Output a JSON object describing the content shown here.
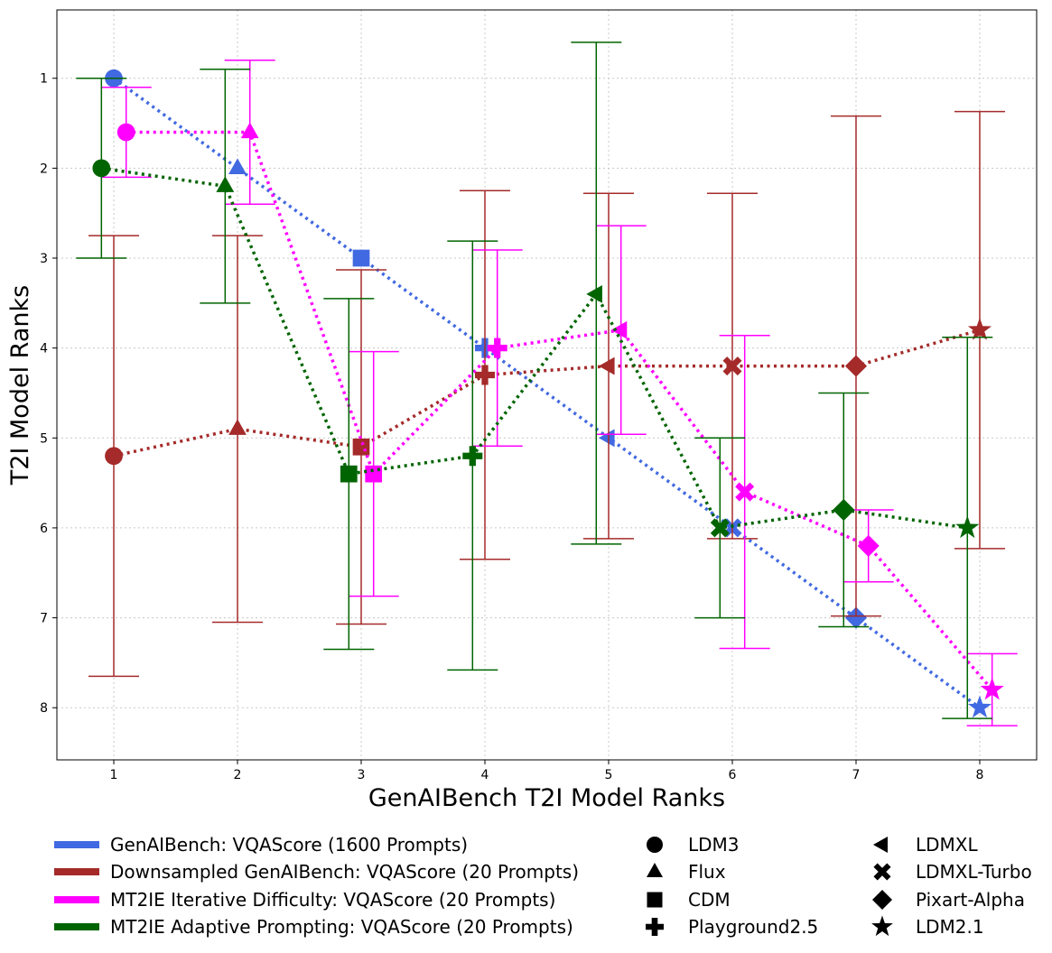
{
  "chart_data": {
    "type": "scatter",
    "title": "",
    "xlabel": "GenAIBench T2I Model Ranks",
    "ylabel": "T2I Model Ranks",
    "xlim": [
      0.54,
      8.46
    ],
    "ylim": [
      8.58,
      0.24
    ],
    "y_inverted": true,
    "grid": true,
    "x_ticks": [
      "1",
      "2",
      "3",
      "4",
      "5",
      "6",
      "7",
      "8"
    ],
    "y_ticks": [
      "1",
      "2",
      "3",
      "4",
      "5",
      "6",
      "7",
      "8"
    ],
    "models": [
      {
        "name": "LDM3",
        "marker": "circle",
        "x": 1
      },
      {
        "name": "Flux",
        "marker": "triangle-up",
        "x": 2
      },
      {
        "name": "CDM",
        "marker": "square",
        "x": 3
      },
      {
        "name": "Playground2.5",
        "marker": "plus",
        "x": 4
      },
      {
        "name": "LDMXL",
        "marker": "triangle-left",
        "x": 5
      },
      {
        "name": "LDMXL-Turbo",
        "marker": "x",
        "x": 6
      },
      {
        "name": "Pixart-Alpha",
        "marker": "diamond",
        "x": 7
      },
      {
        "name": "LDM2.1",
        "marker": "star",
        "x": 8
      }
    ],
    "series": [
      {
        "name": "GenAIBench: VQAScore (1600 Prompts)",
        "color": "#4169E1",
        "x_offset": 0,
        "values": [
          1,
          2,
          3,
          4,
          5,
          6,
          7,
          8
        ],
        "error_low": null,
        "error_high": null
      },
      {
        "name": "Downsampled GenAIBench: VQAScore (20 Prompts)",
        "color": "#A52A2A",
        "x_offset": 0,
        "values": [
          5.2,
          4.9,
          5.1,
          4.3,
          4.2,
          4.2,
          4.2,
          3.8
        ],
        "error_low": [
          2.75,
          2.75,
          3.13,
          2.25,
          2.28,
          2.28,
          1.42,
          1.37
        ],
        "error_high": [
          7.65,
          7.05,
          7.07,
          6.35,
          6.12,
          6.12,
          6.98,
          6.23
        ]
      },
      {
        "name": "MT2IE Iterative Difficulty: VQAScore (20 Prompts)",
        "color": "#FF00FF",
        "x_offset": 0.1,
        "values": [
          1.6,
          1.6,
          5.4,
          4.0,
          3.8,
          5.6,
          6.2,
          7.8
        ],
        "error_low": [
          1.1,
          0.8,
          4.04,
          2.91,
          2.64,
          3.86,
          5.8,
          7.4
        ],
        "error_high": [
          2.1,
          2.4,
          6.76,
          5.09,
          4.96,
          7.34,
          6.6,
          8.2
        ]
      },
      {
        "name": "MT2IE Adaptive Prompting: VQAScore (20 Prompts)",
        "color": "#006400",
        "x_offset": -0.1,
        "values": [
          2.0,
          2.2,
          5.4,
          5.2,
          3.4,
          6.0,
          5.8,
          6.0
        ],
        "error_low": [
          1.0,
          0.9,
          3.45,
          2.81,
          0.6,
          5.0,
          4.5,
          3.88
        ],
        "error_high": [
          3.0,
          3.5,
          7.35,
          7.58,
          6.18,
          7.0,
          7.1,
          8.12
        ]
      }
    ],
    "legend_placement": "below-plot"
  }
}
